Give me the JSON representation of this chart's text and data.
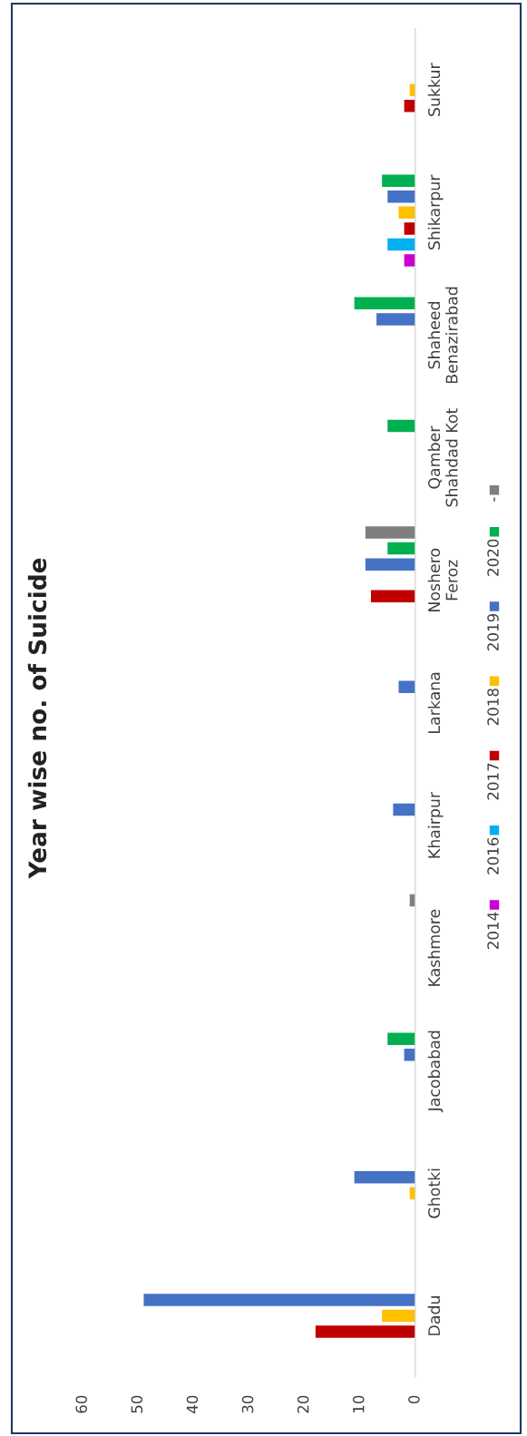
{
  "chart_data": {
    "type": "bar",
    "orientation": "horizontal",
    "title": "Year wise no. of Suicide",
    "categories": [
      "Sukkur",
      "Shikarpur",
      "Shaheed Benazirabad",
      "Qamber Shahdad Kot",
      "Noshero Feroz",
      "Larkana",
      "Khairpur",
      "Kashmore",
      "Jacobabad",
      "Ghotki",
      "Dadu"
    ],
    "series": [
      {
        "name": "2014",
        "color": "#cc00cc",
        "values": [
          null,
          2,
          null,
          null,
          null,
          null,
          null,
          null,
          null,
          null,
          null
        ]
      },
      {
        "name": "2016",
        "color": "#00b0f0",
        "values": [
          null,
          5,
          null,
          null,
          null,
          null,
          null,
          null,
          null,
          null,
          null
        ]
      },
      {
        "name": "2017",
        "color": "#c00000",
        "values": [
          2,
          2,
          null,
          null,
          8,
          null,
          null,
          null,
          null,
          null,
          18
        ]
      },
      {
        "name": "2018",
        "color": "#ffc000",
        "values": [
          1,
          3,
          null,
          null,
          null,
          null,
          null,
          null,
          null,
          1,
          6
        ]
      },
      {
        "name": "2019",
        "color": "#4472c4",
        "values": [
          null,
          5,
          7,
          null,
          9,
          3,
          4,
          null,
          2,
          11,
          49
        ]
      },
      {
        "name": "2020",
        "color": "#00b050",
        "values": [
          null,
          6,
          11,
          5,
          5,
          null,
          null,
          null,
          5,
          null,
          null
        ]
      },
      {
        "name": "-",
        "color": "#7f7f7f",
        "values": [
          null,
          null,
          null,
          null,
          9,
          null,
          null,
          1,
          null,
          null,
          null
        ]
      }
    ],
    "xlim": [
      60,
      0
    ],
    "xticks": [
      0,
      10,
      20,
      30,
      40,
      50,
      60
    ],
    "legend": "right",
    "grid": false
  }
}
